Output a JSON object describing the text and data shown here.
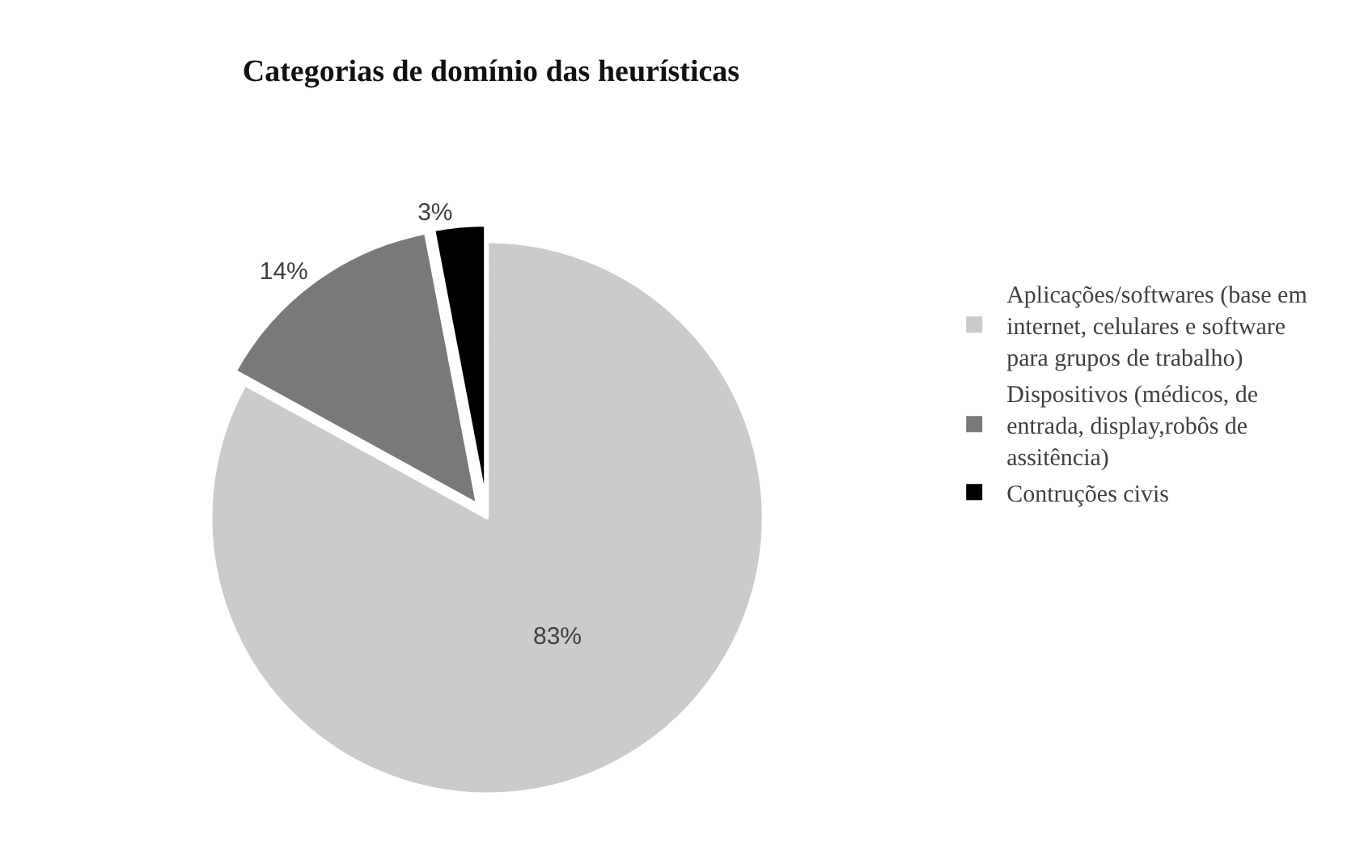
{
  "chart_data": {
    "type": "pie",
    "title": "Categorias de domínio das heurísticas",
    "categories": [
      "Aplicações/softwares (base em internet, celulares e software para grupos de trabalho)",
      "Dispositivos (médicos, de entrada, display,robôs de assitência)",
      "Contruções civis"
    ],
    "values": [
      83,
      14,
      3
    ],
    "value_labels": [
      "83%",
      "14%",
      "3%"
    ],
    "colors": [
      "#cbcbcb",
      "#7b7878",
      "#000000"
    ],
    "legend": "right"
  }
}
